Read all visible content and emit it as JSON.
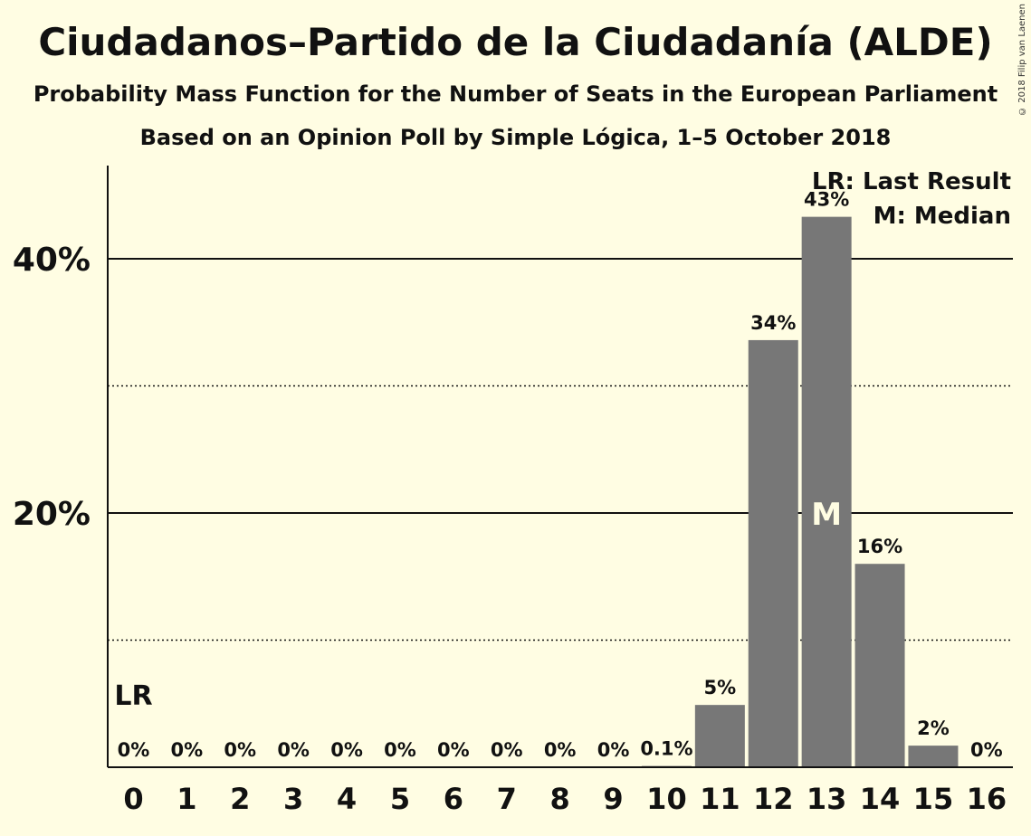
{
  "chart_data": {
    "type": "bar",
    "title": "Ciudadanos–Partido de la Ciudadanía (ALDE)",
    "subtitle": "Probability Mass Function for the Number of Seats in the European Parliament",
    "subtitle2": "Based on an Opinion Poll by Simple Lógica, 1–5 October 2018",
    "copyright": "© 2018 Filip van Laenen",
    "categories": [
      "0",
      "1",
      "2",
      "3",
      "4",
      "5",
      "6",
      "7",
      "8",
      "9",
      "10",
      "11",
      "12",
      "13",
      "14",
      "15",
      "16"
    ],
    "values": [
      0,
      0,
      0,
      0,
      0,
      0,
      0,
      0,
      0,
      0,
      0.1,
      4.9,
      33.6,
      43.3,
      16.0,
      1.7,
      0
    ],
    "value_labels": [
      "0%",
      "0%",
      "0%",
      "0%",
      "0%",
      "0%",
      "0%",
      "0%",
      "0%",
      "0%",
      "0.1%",
      "5%",
      "34%",
      "43%",
      "16%",
      "2%",
      "0%"
    ],
    "ylim": [
      0,
      47
    ],
    "yticks": [
      {
        "value": 10,
        "label": "",
        "style": "dotted"
      },
      {
        "value": 20,
        "label": "20%",
        "style": "solid"
      },
      {
        "value": 30,
        "label": "",
        "style": "dotted"
      },
      {
        "value": 40,
        "label": "40%",
        "style": "solid"
      }
    ],
    "last_result_index": 0,
    "last_result_marker": "LR",
    "median_index": 13,
    "median_marker": "M",
    "legend": [
      "LR: Last Result",
      "M: Median"
    ],
    "legend_position": "top-right",
    "colors": {
      "background": "#fffde3",
      "bar": "#777777",
      "axis": "#111111",
      "median_text": "#fffde3"
    }
  }
}
